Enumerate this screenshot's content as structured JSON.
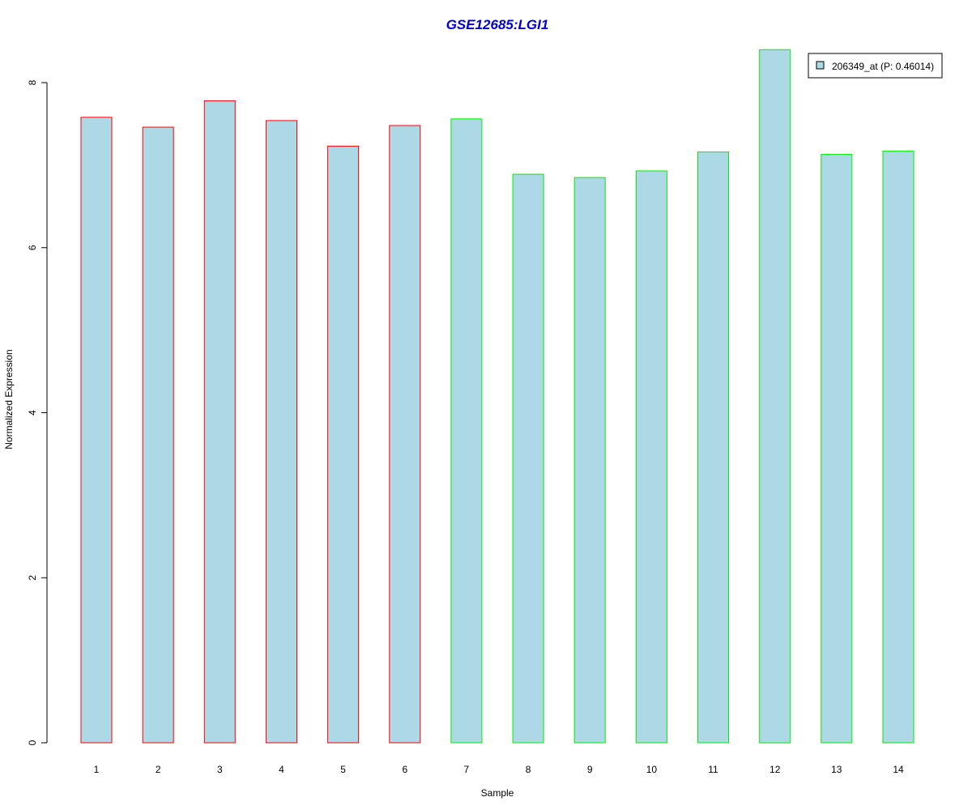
{
  "chart_data": {
    "type": "bar",
    "title": "GSE12685:LGI1",
    "xlabel": "Sample",
    "ylabel": "Normalized Expression",
    "ylim": [
      0,
      8.4
    ],
    "yticks": [
      0,
      2,
      4,
      6,
      8
    ],
    "grid": false,
    "legend_position": "top-right",
    "categories": [
      "1",
      "2",
      "3",
      "4",
      "5",
      "6",
      "7",
      "8",
      "9",
      "10",
      "11",
      "12",
      "13",
      "14"
    ],
    "series": [
      {
        "name": "206349_at (P: 0.46014)",
        "values": [
          7.58,
          7.46,
          7.78,
          7.54,
          7.23,
          7.48,
          7.56,
          6.89,
          6.85,
          6.93,
          7.16,
          8.4,
          7.13,
          7.17
        ]
      }
    ],
    "bar_group": [
      "red",
      "red",
      "red",
      "red",
      "red",
      "red",
      "green",
      "green",
      "green",
      "green",
      "green",
      "green",
      "green",
      "green"
    ]
  },
  "colors": {
    "title": "#0000cc",
    "bar_fill": "#add8e6",
    "group_red": "#ff0000",
    "group_green": "#00ee00",
    "axis": "#000000"
  }
}
